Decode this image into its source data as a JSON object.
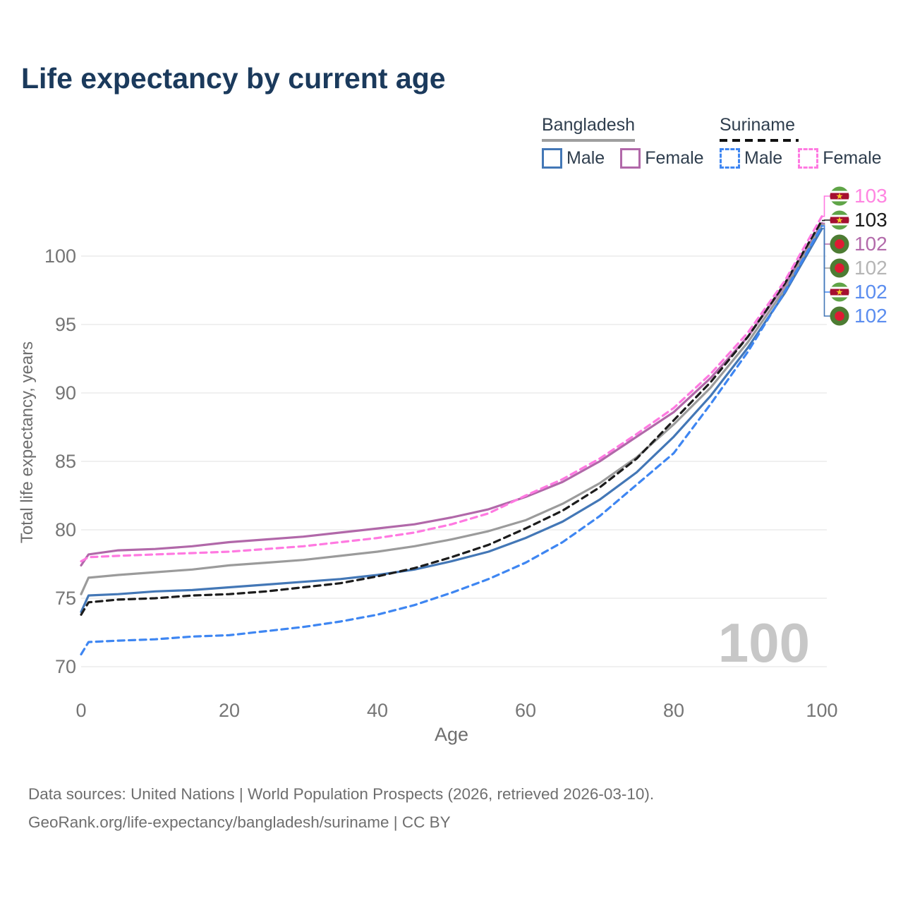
{
  "title": "Life expectancy by current age",
  "legend": {
    "groups": [
      {
        "id": "bangladesh",
        "label": "Bangladesh",
        "line_style": "solid",
        "underline_color": "#9e9e9e",
        "items": [
          {
            "label": "Male",
            "color": "#4377b6",
            "dashed": false
          },
          {
            "label": "Female",
            "color": "#b168a9",
            "dashed": false
          }
        ]
      },
      {
        "id": "suriname",
        "label": "Suriname",
        "line_style": "dashed",
        "underline_color": "#111111",
        "items": [
          {
            "label": "Male",
            "color": "#3e86f2",
            "dashed": true
          },
          {
            "label": "Female",
            "color": "#ff79e1",
            "dashed": true
          }
        ]
      }
    ]
  },
  "chart_data": {
    "type": "line",
    "title": "Life expectancy by current age",
    "xlabel": "Age",
    "ylabel": "Total life expectancy, years",
    "x_ticks": [
      0,
      20,
      40,
      60,
      80,
      100
    ],
    "y_ticks": [
      70,
      75,
      80,
      85,
      90,
      95,
      100
    ],
    "xlim": [
      0,
      100
    ],
    "ylim": [
      69,
      104
    ],
    "grid": "horizontal",
    "legend_position": "top-right",
    "x": [
      0,
      1,
      5,
      10,
      15,
      20,
      25,
      30,
      35,
      40,
      45,
      50,
      55,
      60,
      65,
      70,
      75,
      80,
      85,
      90,
      95,
      100
    ],
    "series": [
      {
        "name": "Bangladesh Female",
        "country": "Bangladesh",
        "sex": "Female",
        "color": "#b168a9",
        "dashed": false,
        "values": [
          77.4,
          78.2,
          78.5,
          78.6,
          78.8,
          79.1,
          79.3,
          79.5,
          79.8,
          80.1,
          80.4,
          80.9,
          81.5,
          82.4,
          83.5,
          85.0,
          86.8,
          88.6,
          91.1,
          94.1,
          97.9,
          102.4
        ]
      },
      {
        "name": "Bangladesh Total",
        "country": "Bangladesh",
        "sex": "Both",
        "color": "#9b9b9b",
        "dashed": false,
        "values": [
          75.3,
          76.5,
          76.7,
          76.9,
          77.1,
          77.4,
          77.6,
          77.8,
          78.1,
          78.4,
          78.8,
          79.3,
          79.9,
          80.7,
          81.9,
          83.4,
          85.3,
          87.7,
          90.4,
          93.7,
          97.6,
          102.3
        ]
      },
      {
        "name": "Bangladesh Male",
        "country": "Bangladesh",
        "sex": "Male",
        "color": "#4377b6",
        "dashed": false,
        "values": [
          74.0,
          75.2,
          75.3,
          75.5,
          75.6,
          75.8,
          76.0,
          76.2,
          76.4,
          76.7,
          77.1,
          77.7,
          78.4,
          79.4,
          80.6,
          82.2,
          84.2,
          86.8,
          89.8,
          93.3,
          97.3,
          102.0
        ]
      },
      {
        "name": "Suriname Total",
        "country": "Suriname",
        "sex": "Both",
        "color": "#1c1c1c",
        "dashed": true,
        "values": [
          73.8,
          74.7,
          74.9,
          75.0,
          75.2,
          75.3,
          75.5,
          75.8,
          76.1,
          76.6,
          77.2,
          78.0,
          78.9,
          80.1,
          81.4,
          83.1,
          85.2,
          88.0,
          90.8,
          94.1,
          98.0,
          102.6
        ]
      },
      {
        "name": "Suriname Male",
        "country": "Suriname",
        "sex": "Male",
        "color": "#3e86f2",
        "dashed": true,
        "values": [
          70.9,
          71.8,
          71.9,
          72.0,
          72.2,
          72.3,
          72.6,
          72.9,
          73.3,
          73.8,
          74.5,
          75.4,
          76.4,
          77.6,
          79.1,
          81.0,
          83.3,
          85.6,
          89.2,
          93.0,
          97.4,
          102.2
        ]
      },
      {
        "name": "Suriname Female",
        "country": "Suriname",
        "sex": "Female",
        "color": "#ff79e1",
        "dashed": true,
        "values": [
          77.7,
          78.0,
          78.1,
          78.2,
          78.3,
          78.4,
          78.6,
          78.8,
          79.1,
          79.4,
          79.8,
          80.4,
          81.2,
          82.5,
          83.7,
          85.2,
          87.0,
          88.9,
          91.4,
          94.4,
          98.2,
          102.9
        ]
      }
    ],
    "end_labels": [
      {
        "value": "103",
        "flag": "suriname",
        "series": "Suriname Female",
        "text_color": "#ff85e1"
      },
      {
        "value": "103",
        "flag": "suriname",
        "series": "Suriname Total",
        "text_color": "#1a1a1a"
      },
      {
        "value": "102",
        "flag": "bangladesh",
        "series": "Bangladesh Female",
        "text_color": "#b36bab"
      },
      {
        "value": "102",
        "flag": "bangladesh",
        "series": "Bangladesh Total",
        "text_color": "#b5b5b5"
      },
      {
        "value": "102",
        "flag": "suriname",
        "series": "Suriname Male",
        "text_color": "#5b8def"
      },
      {
        "value": "102",
        "flag": "bangladesh",
        "series": "Bangladesh Male",
        "text_color": "#5b8def"
      }
    ]
  },
  "watermark": "100",
  "footer": {
    "line1": "Data sources: United Nations | World Population Prospects (2026, retrieved 2026-03-10).",
    "line2": "GeoRank.org/life-expectancy/bangladesh/suriname | CC BY"
  }
}
